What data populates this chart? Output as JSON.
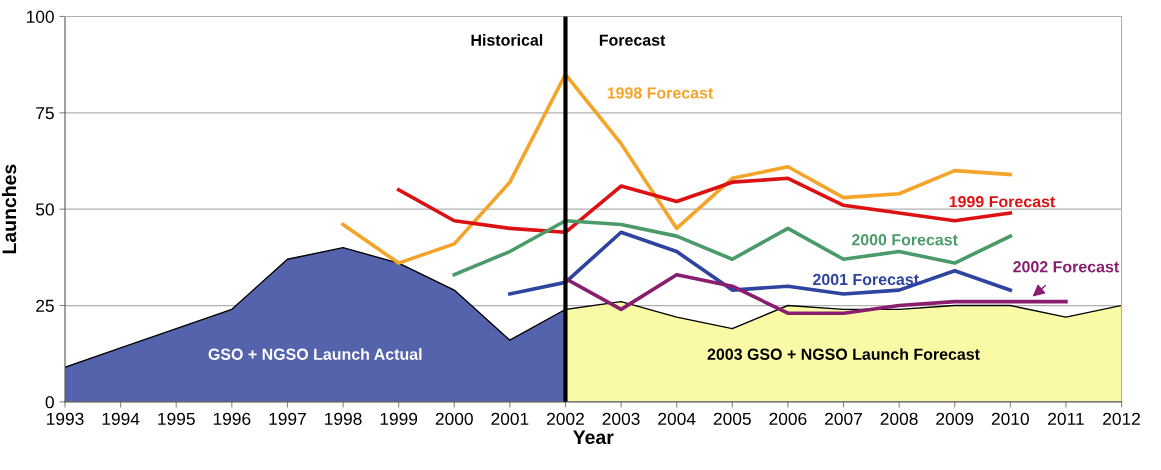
{
  "chart_data": {
    "type": "line",
    "xlabel": "Year",
    "ylabel": "Launches",
    "xlim": [
      1993,
      2012
    ],
    "xticks": [
      1993,
      1994,
      1995,
      1996,
      1997,
      1998,
      1999,
      2000,
      2001,
      2002,
      2003,
      2004,
      2005,
      2006,
      2007,
      2008,
      2009,
      2010,
      2011,
      2012
    ],
    "ylim": [
      0,
      100
    ],
    "yticks": [
      0,
      25,
      50,
      75,
      100
    ],
    "grid": "y",
    "legend": false,
    "series": [
      {
        "type": "area",
        "name": "GSO + NGSO Launch Actual",
        "color": "#5563ad",
        "x": [
          1993,
          1994,
          1995,
          1996,
          1997,
          1998,
          1999,
          2000,
          2001,
          2002
        ],
        "values": [
          9,
          14,
          19,
          24,
          37,
          40,
          36,
          29,
          16,
          24
        ]
      },
      {
        "type": "area",
        "name": "2003 GSO + NGSO Launch Forecast",
        "color": "#fafaa6",
        "x": [
          2002,
          2003,
          2004,
          2005,
          2006,
          2007,
          2008,
          2009,
          2010,
          2011,
          2012
        ],
        "values": [
          24,
          26,
          22,
          19,
          25,
          24,
          24,
          25,
          25,
          22,
          25
        ]
      },
      {
        "name": "1998 Forecast",
        "color": "#f4a428",
        "x": [
          1998,
          1999,
          2000,
          2001,
          2002,
          2003,
          2004,
          2005,
          2006,
          2007,
          2008,
          2009,
          2010
        ],
        "values": [
          46,
          36,
          41,
          57,
          85,
          67,
          45,
          58,
          61,
          53,
          54,
          60,
          59
        ]
      },
      {
        "name": "1999 Forecast",
        "color": "#dd1111",
        "x": [
          1999,
          2000,
          2001,
          2002,
          2003,
          2004,
          2005,
          2006,
          2007,
          2008,
          2009,
          2010
        ],
        "values": [
          55,
          47,
          45,
          44,
          56,
          52,
          57,
          58,
          51,
          49,
          47,
          49
        ]
      },
      {
        "name": "2000 Forecast",
        "color": "#4a9a6a",
        "x": [
          2000,
          2001,
          2002,
          2003,
          2004,
          2005,
          2006,
          2007,
          2008,
          2009,
          2010
        ],
        "values": [
          33,
          39,
          47,
          46,
          43,
          37,
          45,
          37,
          39,
          36,
          43
        ]
      },
      {
        "name": "2001 Forecast",
        "color": "#2e44a0",
        "x": [
          2001,
          2002,
          2003,
          2004,
          2005,
          2006,
          2007,
          2008,
          2009,
          2010
        ],
        "values": [
          28,
          31,
          44,
          39,
          29,
          30,
          28,
          29,
          34,
          29
        ]
      },
      {
        "name": "2002 Forecast",
        "color": "#8a1e6e",
        "x": [
          2002,
          2003,
          2004,
          2005,
          2006,
          2007,
          2008,
          2009,
          2010,
          2011
        ],
        "values": [
          32,
          24,
          33,
          30,
          23,
          23,
          25,
          26,
          26,
          26
        ]
      }
    ],
    "ref_lines": [
      {
        "axis": "x",
        "value": 2002,
        "color": "#000000"
      }
    ],
    "annotations": [
      "Historical",
      "Forecast"
    ]
  }
}
